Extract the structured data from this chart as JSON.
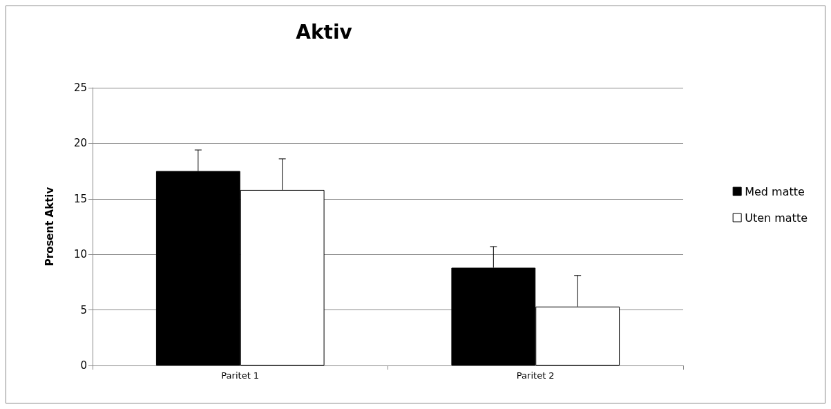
{
  "chart_data": {
    "type": "bar",
    "title": "Aktiv",
    "ylabel": "Prosent Aktiv",
    "categories": [
      "Paritet 1",
      "Paritet 2"
    ],
    "series": [
      {
        "name": "Med matte",
        "color": "#000000",
        "values": [
          17.5,
          8.8
        ],
        "errors": [
          [
            17.5,
            19.4
          ],
          [
            8.8,
            10.7
          ]
        ]
      },
      {
        "name": "Uten matte",
        "color": "#ffffff",
        "values": [
          15.8,
          5.3
        ],
        "errors": [
          [
            15.8,
            18.6
          ],
          [
            5.3,
            8.1
          ]
        ]
      }
    ],
    "ylim": [
      0,
      25
    ],
    "yticks": [
      0,
      5,
      10,
      15,
      20,
      25
    ],
    "grid": "y",
    "legend": "right"
  }
}
